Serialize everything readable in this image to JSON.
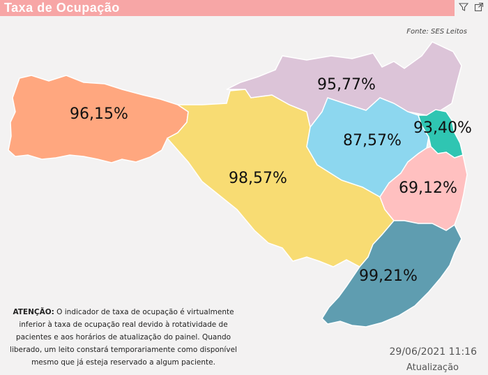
{
  "header": {
    "title": "Taxa de Ocupação",
    "filter_icon": "filter-icon",
    "expand_icon": "expand-icon"
  },
  "source": "Fonte: SES Leitos",
  "map": {
    "regions": [
      {
        "id": "oeste",
        "value": "96,15%",
        "color": "#ffa77f"
      },
      {
        "id": "meio-oeste",
        "value": "98,57%",
        "color": "#f8dc73"
      },
      {
        "id": "norte",
        "value": "95,77%",
        "color": "#dcc4d8"
      },
      {
        "id": "vale",
        "value": "87,57%",
        "color": "#8dd7ef"
      },
      {
        "id": "foz",
        "value": "93,40%",
        "color": "#2fc5b2"
      },
      {
        "id": "grande-florianopolis",
        "value": "69,12%",
        "color": "#ffc0c0"
      },
      {
        "id": "sul",
        "value": "99,21%",
        "color": "#5f9db0"
      }
    ]
  },
  "note": {
    "bold": "ATENÇÃO:",
    "text": " O indicador de taxa de ocupação é virtualmente inferior à taxa de ocupação real devido à rotatividade de pacientes e aos horários de atualização do painel.  Quando liberado, um leito constará temporariamente como disponível mesmo que já esteja reservado a algum paciente."
  },
  "timestamp": {
    "value": "29/06/2021 11:16",
    "label": "Atualização"
  }
}
